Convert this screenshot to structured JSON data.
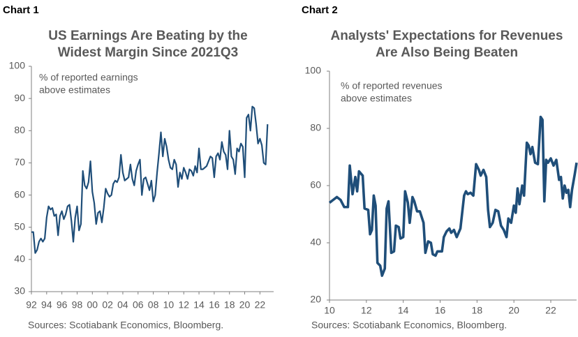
{
  "chart_data": [
    {
      "type": "line",
      "label": "Chart 1",
      "title": [
        "US Earnings Are Beating by the",
        "Widest Margin Since 2021Q3"
      ],
      "annotation": [
        "% of reported earnings",
        "above estimates"
      ],
      "source": "Sources: Scotiabank Economics, Bloomberg.",
      "color": "#1f4e79",
      "xlim": [
        1992,
        2023.8
      ],
      "ylim": [
        30,
        100
      ],
      "yticks": [
        30,
        40,
        50,
        60,
        70,
        80,
        90,
        100
      ],
      "xticks": [
        {
          "value": 1992,
          "label": "92"
        },
        {
          "value": 1994,
          "label": "94"
        },
        {
          "value": 1996,
          "label": "96"
        },
        {
          "value": 1998,
          "label": "98"
        },
        {
          "value": 2000,
          "label": "00"
        },
        {
          "value": 2002,
          "label": "02"
        },
        {
          "value": 2004,
          "label": "04"
        },
        {
          "value": 2006,
          "label": "06"
        },
        {
          "value": 2008,
          "label": "08"
        },
        {
          "value": 2010,
          "label": "10"
        },
        {
          "value": 2012,
          "label": "12"
        },
        {
          "value": 2014,
          "label": "14"
        },
        {
          "value": 2016,
          "label": "16"
        },
        {
          "value": 2018,
          "label": "18"
        },
        {
          "value": 2020,
          "label": "20"
        },
        {
          "value": 2022,
          "label": "22"
        }
      ],
      "x": [
        1992,
        1992.25,
        1992.5,
        1992.75,
        1993,
        1993.25,
        1993.5,
        1993.75,
        1994,
        1994.25,
        1994.5,
        1994.75,
        1995,
        1995.25,
        1995.5,
        1995.75,
        1996,
        1996.25,
        1996.5,
        1996.75,
        1997,
        1997.25,
        1997.5,
        1997.75,
        1998,
        1998.25,
        1998.5,
        1998.75,
        1999,
        1999.25,
        1999.5,
        1999.75,
        2000,
        2000.25,
        2000.5,
        2000.75,
        2001,
        2001.25,
        2001.5,
        2001.75,
        2002,
        2002.25,
        2002.5,
        2002.75,
        2003,
        2003.25,
        2003.5,
        2003.75,
        2004,
        2004.25,
        2004.5,
        2004.75,
        2005,
        2005.25,
        2005.5,
        2005.75,
        2006,
        2006.25,
        2006.5,
        2006.75,
        2007,
        2007.25,
        2007.5,
        2007.75,
        2008,
        2008.25,
        2008.5,
        2008.75,
        2009,
        2009.25,
        2009.5,
        2009.75,
        2010,
        2010.25,
        2010.5,
        2010.75,
        2011,
        2011.25,
        2011.5,
        2011.75,
        2012,
        2012.25,
        2012.5,
        2012.75,
        2013,
        2013.25,
        2013.5,
        2013.75,
        2014,
        2014.25,
        2014.5,
        2014.75,
        2015,
        2015.25,
        2015.5,
        2015.75,
        2016,
        2016.25,
        2016.5,
        2016.75,
        2017,
        2017.25,
        2017.5,
        2017.75,
        2018,
        2018.25,
        2018.5,
        2018.75,
        2019,
        2019.25,
        2019.5,
        2019.75,
        2020,
        2020.25,
        2020.5,
        2020.75,
        2021,
        2021.25,
        2021.5,
        2021.75,
        2022,
        2022.25,
        2022.5,
        2022.75,
        2023
      ],
      "values": [
        48.5,
        48.5,
        42,
        43,
        45.5,
        46.5,
        45.5,
        46.5,
        53,
        56.5,
        55.5,
        56,
        53.5,
        54,
        47.5,
        53.5,
        55,
        52.5,
        54,
        56.5,
        57,
        52,
        45.5,
        53,
        56.5,
        49,
        51,
        67.5,
        63,
        62,
        64,
        70.5,
        61,
        57.5,
        51,
        54.5,
        55,
        51.5,
        56,
        62,
        60.5,
        59.5,
        60,
        63.5,
        64.5,
        64,
        65.5,
        72.5,
        67,
        64.5,
        65,
        65.5,
        69.5,
        65,
        63,
        67.5,
        69.5,
        71,
        60,
        65,
        65.5,
        63.5,
        61.5,
        64.5,
        58,
        60,
        67,
        73,
        79.5,
        72,
        77.5,
        75,
        71,
        68.5,
        68,
        71,
        69.5,
        62.5,
        67,
        65,
        68.5,
        67,
        65,
        68,
        67.5,
        66,
        69,
        67,
        74.5,
        68,
        68,
        68.5,
        69,
        70.5,
        72,
        71.5,
        65.5,
        72,
        73,
        71,
        76.5,
        73.5,
        72.5,
        68,
        80,
        72,
        71,
        66.5,
        74.5,
        73.5,
        76,
        75,
        65.5,
        84,
        85,
        80,
        87.5,
        87,
        82,
        76,
        77.5,
        75.5,
        70,
        69.5,
        82
      ]
    },
    {
      "type": "line",
      "label": "Chart 2",
      "title": [
        "Analysts' Expectations for Revenues",
        "Are Also Being Beaten"
      ],
      "annotation": [
        "% of reported revenues",
        "above estimates"
      ],
      "source": "Sources: Scotiabank Economics, Bloomberg.",
      "color": "#1f4e79",
      "xlim": [
        2010,
        2023.4
      ],
      "ylim": [
        20,
        100
      ],
      "yticks": [
        20,
        40,
        60,
        80,
        100
      ],
      "xticks": [
        {
          "value": 2010,
          "label": "10"
        },
        {
          "value": 2012,
          "label": "12"
        },
        {
          "value": 2014,
          "label": "14"
        },
        {
          "value": 2016,
          "label": "16"
        },
        {
          "value": 2018,
          "label": "18"
        },
        {
          "value": 2020,
          "label": "20"
        },
        {
          "value": 2022,
          "label": "22"
        }
      ],
      "x": [
        2010,
        2010.2,
        2010.4,
        2010.6,
        2010.8,
        2011,
        2011.1,
        2011.25,
        2011.4,
        2011.5,
        2011.6,
        2011.8,
        2011.9,
        2012.1,
        2012.2,
        2012.3,
        2012.4,
        2012.5,
        2012.6,
        2012.75,
        2012.85,
        2013,
        2013.1,
        2013.2,
        2013.35,
        2013.5,
        2013.6,
        2013.75,
        2013.85,
        2014,
        2014.1,
        2014.25,
        2014.35,
        2014.5,
        2014.6,
        2014.75,
        2014.9,
        2015.1,
        2015.2,
        2015.35,
        2015.5,
        2015.6,
        2015.75,
        2015.85,
        2016.1,
        2016.2,
        2016.35,
        2016.5,
        2016.6,
        2016.75,
        2016.9,
        2017.1,
        2017.3,
        2017.4,
        2017.5,
        2017.65,
        2017.8,
        2017.95,
        2018.1,
        2018.2,
        2018.35,
        2018.5,
        2018.6,
        2018.7,
        2018.85,
        2019,
        2019.15,
        2019.3,
        2019.45,
        2019.6,
        2019.7,
        2019.85,
        2020,
        2020.1,
        2020.2,
        2020.3,
        2020.45,
        2020.55,
        2020.7,
        2020.8,
        2020.9,
        2021,
        2021.15,
        2021.3,
        2021.45,
        2021.55,
        2021.65,
        2021.75,
        2021.85,
        2022,
        2022.15,
        2022.3,
        2022.45,
        2022.55,
        2022.65,
        2022.75,
        2022.85,
        2022.95,
        2023.05,
        2023.15,
        2023.3,
        2023.4
      ],
      "values": [
        54,
        55,
        56,
        55,
        52.5,
        52.5,
        67,
        57,
        63,
        58,
        65,
        63.5,
        52,
        51.5,
        43,
        44.5,
        56.5,
        53,
        33,
        32,
        28.5,
        31,
        52,
        54.5,
        36.5,
        37,
        46,
        45.5,
        41.5,
        42,
        58,
        54,
        47,
        56,
        54.5,
        51,
        51,
        47,
        36.5,
        40.5,
        40,
        36,
        35.5,
        37,
        37,
        42,
        44,
        45,
        43.5,
        44.5,
        42,
        45,
        56.5,
        58,
        57,
        57.5,
        56.5,
        67.5,
        65.5,
        63.5,
        65.5,
        63,
        51.5,
        45.5,
        47,
        51.5,
        51,
        46,
        44.5,
        42,
        48.5,
        47,
        53,
        50.5,
        59,
        53.5,
        60,
        56.5,
        75,
        74,
        71,
        73.5,
        68,
        67.5,
        84,
        83,
        54.5,
        69,
        68,
        69.5,
        67,
        69,
        62,
        63,
        55.5,
        60,
        57.5,
        58.5,
        52.5,
        58.5,
        64,
        68
      ]
    }
  ]
}
